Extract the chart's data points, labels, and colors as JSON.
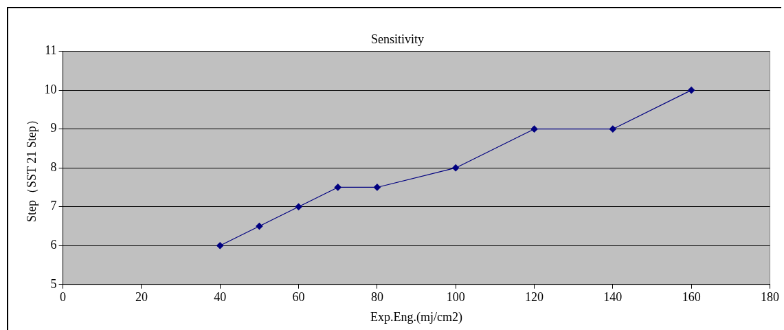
{
  "chart_data": {
    "type": "line",
    "title": "Sensitivity",
    "xlabel": "Exp.Eng.(mj/cm2)",
    "ylabel": "Step（SST 21 Step）",
    "x": [
      40,
      50,
      60,
      70,
      80,
      100,
      120,
      140,
      160
    ],
    "series": [
      {
        "color": "#000080",
        "values": [
          6,
          6.5,
          7,
          7.5,
          7.5,
          8,
          9,
          9,
          10
        ]
      }
    ],
    "xlim": [
      0,
      180
    ],
    "xticks": [
      0,
      20,
      40,
      60,
      80,
      100,
      120,
      140,
      160,
      180
    ],
    "ylim": [
      5,
      11
    ],
    "yticks": [
      5,
      6,
      7,
      8,
      9,
      10,
      11
    ],
    "grid": "y",
    "legend": false,
    "marker": "diamond",
    "line_style": "solid"
  }
}
